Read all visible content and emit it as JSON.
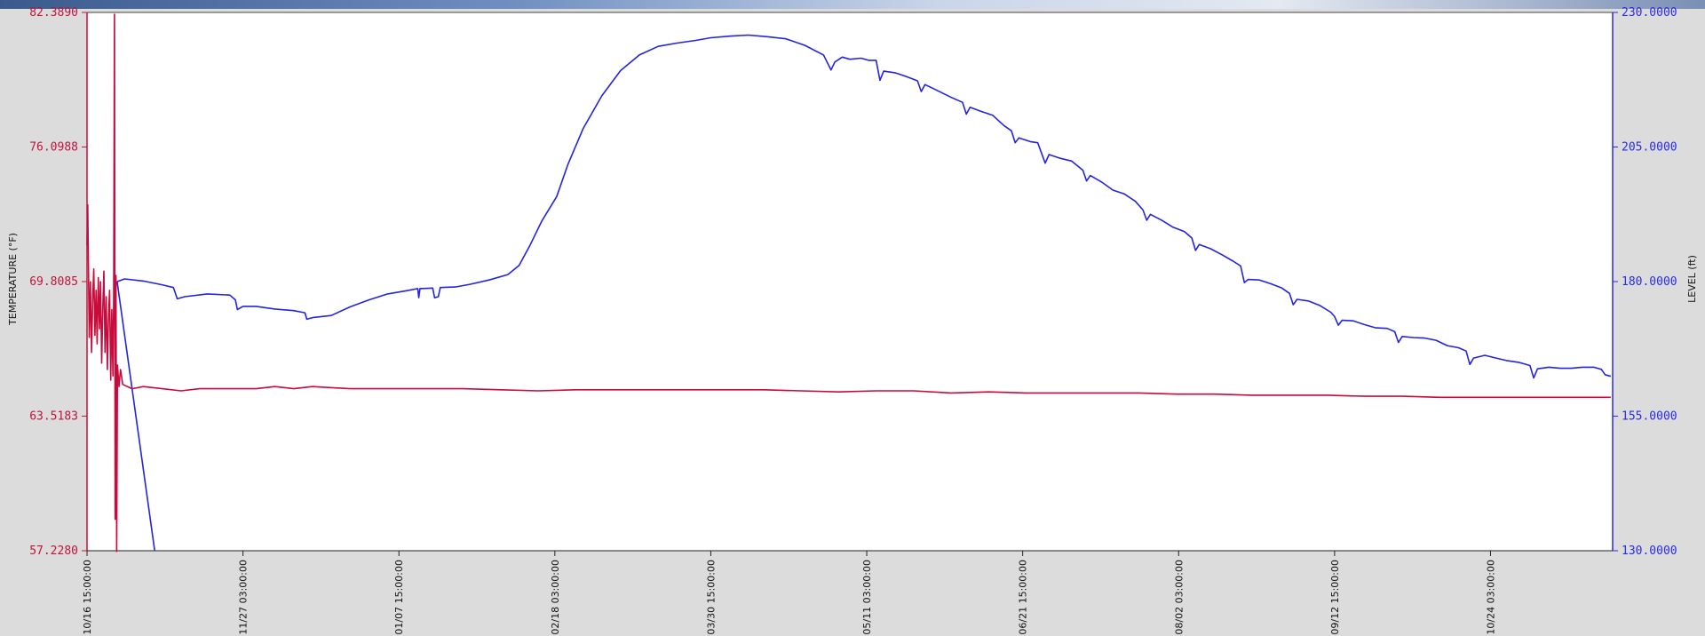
{
  "chart_data": {
    "type": "line",
    "title": "",
    "xlabel": "",
    "ylabel_left": "TEMPERATURE (°F)",
    "ylabel_right": "LEVEL (ft)",
    "x_tick_labels": [
      "10/16 15:00:00",
      "11/27 03:00:00",
      "01/07 15:00:00",
      "02/18 03:00:00",
      "03/30 15:00:00",
      "05/11 03:00:00",
      "06/21 15:00:00",
      "08/02 03:00:00",
      "09/12 15:00:00",
      "10/24 03:00:00"
    ],
    "x_range_days": [
      0,
      406
    ],
    "x_tick_days": [
      0,
      41.5,
      83,
      124.5,
      166,
      207.5,
      249,
      290.5,
      332,
      373.5
    ],
    "y_left_ticks": [
      "82.3890",
      "76.0988",
      "69.8085",
      "63.5183",
      "57.2280"
    ],
    "y_left_range": [
      57.228,
      82.389
    ],
    "y_right_ticks": [
      "230.0000",
      "205.0000",
      "180.0000",
      "155.0000",
      "130.0000"
    ],
    "y_right_range": [
      130,
      230
    ],
    "grid": false,
    "series": [
      {
        "axis": "right",
        "color": "#2424e0",
        "points": [
          [
            8,
            180
          ],
          [
            10,
            180.5
          ],
          [
            15,
            180.1
          ],
          [
            20,
            179.4
          ],
          [
            23,
            178.9
          ],
          [
            24,
            176.8
          ],
          [
            26,
            177.2
          ],
          [
            32,
            177.7
          ],
          [
            38,
            177.5
          ],
          [
            39.5,
            176.6
          ],
          [
            40,
            174.8
          ],
          [
            41.5,
            175.4
          ],
          [
            45,
            175.4
          ],
          [
            50,
            174.9
          ],
          [
            55,
            174.6
          ],
          [
            58,
            174.2
          ],
          [
            58.5,
            173.0
          ],
          [
            60,
            173.3
          ],
          [
            65,
            173.7
          ],
          [
            70,
            175.3
          ],
          [
            75,
            176.6
          ],
          [
            80,
            177.7
          ],
          [
            85,
            178.3
          ],
          [
            88,
            178.7
          ],
          [
            88.3,
            177.0
          ],
          [
            88.6,
            178.7
          ],
          [
            92,
            178.8
          ],
          [
            92.5,
            177.0
          ],
          [
            93.5,
            177.2
          ],
          [
            94,
            178.9
          ],
          [
            98,
            179.0
          ],
          [
            102,
            179.5
          ],
          [
            107,
            180.3
          ],
          [
            112,
            181.3
          ],
          [
            115,
            183.0
          ],
          [
            118,
            186.9
          ],
          [
            121,
            191.2
          ],
          [
            125,
            195.8
          ],
          [
            128,
            201.8
          ],
          [
            132,
            208.4
          ],
          [
            137,
            214.5
          ],
          [
            142,
            219.2
          ],
          [
            147,
            222.1
          ],
          [
            152,
            223.7
          ],
          [
            157,
            224.3
          ],
          [
            162,
            224.8
          ],
          [
            166,
            225.3
          ],
          [
            171,
            225.6
          ],
          [
            176,
            225.8
          ],
          [
            181,
            225.5
          ],
          [
            186,
            225.1
          ],
          [
            191,
            223.9
          ],
          [
            196,
            222.1
          ],
          [
            198,
            219.3
          ],
          [
            199,
            220.8
          ],
          [
            201,
            221.7
          ],
          [
            203,
            221.3
          ],
          [
            206,
            221.5
          ],
          [
            208,
            221.1
          ],
          [
            210,
            221.1
          ],
          [
            211,
            217.4
          ],
          [
            212,
            219.1
          ],
          [
            215,
            218.8
          ],
          [
            218,
            218.1
          ],
          [
            221,
            217.3
          ],
          [
            222,
            215.3
          ],
          [
            223,
            216.6
          ],
          [
            226,
            215.6
          ],
          [
            230,
            214.2
          ],
          [
            233,
            213.3
          ],
          [
            234,
            211.1
          ],
          [
            235,
            212.4
          ],
          [
            238,
            211.6
          ],
          [
            241,
            210.9
          ],
          [
            244,
            209.0
          ],
          [
            246,
            208.0
          ],
          [
            247,
            205.8
          ],
          [
            248,
            206.7
          ],
          [
            251,
            206.0
          ],
          [
            253,
            205.8
          ],
          [
            255,
            202.0
          ],
          [
            256,
            203.6
          ],
          [
            259,
            202.9
          ],
          [
            262,
            202.4
          ],
          [
            265,
            200.7
          ],
          [
            266,
            198.7
          ],
          [
            267,
            199.7
          ],
          [
            270,
            198.5
          ],
          [
            273,
            197.0
          ],
          [
            276,
            196.3
          ],
          [
            279,
            194.9
          ],
          [
            281,
            193.3
          ],
          [
            282,
            191.4
          ],
          [
            283,
            192.5
          ],
          [
            286,
            191.4
          ],
          [
            289,
            190.1
          ],
          [
            292,
            189.3
          ],
          [
            294,
            188.1
          ],
          [
            295,
            185.8
          ],
          [
            296,
            186.9
          ],
          [
            299,
            186.1
          ],
          [
            302,
            185.0
          ],
          [
            305,
            183.8
          ],
          [
            307,
            182.9
          ],
          [
            308,
            179.8
          ],
          [
            309,
            180.4
          ],
          [
            312,
            180.3
          ],
          [
            315,
            179.6
          ],
          [
            318,
            178.8
          ],
          [
            320,
            177.8
          ],
          [
            321,
            175.7
          ],
          [
            322,
            176.7
          ],
          [
            325,
            176.4
          ],
          [
            328,
            175.6
          ],
          [
            331,
            174.3
          ],
          [
            332,
            173.5
          ],
          [
            333,
            171.9
          ],
          [
            334,
            172.8
          ],
          [
            337,
            172.7
          ],
          [
            340,
            172.0
          ],
          [
            343,
            171.4
          ],
          [
            346,
            171.3
          ],
          [
            348,
            170.7
          ],
          [
            349,
            168.7
          ],
          [
            350,
            169.8
          ],
          [
            353,
            169.6
          ],
          [
            356,
            169.5
          ],
          [
            359,
            169.1
          ],
          [
            362,
            168.1
          ],
          [
            365,
            167.7
          ],
          [
            367,
            167.1
          ],
          [
            368,
            164.6
          ],
          [
            369,
            165.8
          ],
          [
            372,
            166.3
          ],
          [
            375,
            165.8
          ],
          [
            378,
            165.3
          ],
          [
            381,
            165.0
          ],
          [
            384,
            164.4
          ],
          [
            385,
            162.1
          ],
          [
            386,
            163.8
          ],
          [
            389,
            164.1
          ],
          [
            392,
            163.9
          ],
          [
            395,
            163.9
          ],
          [
            398,
            164.1
          ],
          [
            401,
            164.1
          ],
          [
            403,
            163.7
          ],
          [
            404,
            162.7
          ],
          [
            405.5,
            162.4
          ]
        ]
      },
      {
        "axis": "right",
        "color": "#2424e0",
        "points": [
          [
            8,
            180
          ],
          [
            18,
            130
          ]
        ]
      },
      {
        "axis": "left",
        "color": "#c80a3c",
        "points": [
          [
            0,
            71.5
          ],
          [
            0.2,
            73.4
          ],
          [
            0.4,
            70.2
          ],
          [
            0.6,
            67.2
          ],
          [
            0.9,
            69.8
          ],
          [
            1.2,
            66.5
          ],
          [
            1.5,
            68.8
          ],
          [
            1.8,
            70.4
          ],
          [
            2.1,
            67.3
          ],
          [
            2.4,
            69.4
          ],
          [
            2.7,
            66.9
          ],
          [
            3.0,
            70.0
          ],
          [
            3.3,
            67.6
          ],
          [
            3.6,
            69.8
          ],
          [
            3.9,
            66.0
          ],
          [
            4.2,
            68.6
          ],
          [
            4.5,
            70.3
          ],
          [
            4.8,
            66.5
          ],
          [
            5.1,
            69.1
          ],
          [
            5.4,
            65.7
          ],
          [
            5.7,
            68.0
          ],
          [
            6.0,
            69.4
          ],
          [
            6.3,
            65.2
          ],
          [
            6.6,
            68.5
          ],
          [
            6.9,
            65.4
          ],
          [
            7.1,
            69.0
          ],
          [
            7.3,
            82.3
          ],
          [
            7.5,
            58.7
          ],
          [
            7.7,
            70.1
          ],
          [
            7.9,
            57.2
          ],
          [
            8.1,
            65.9
          ],
          [
            8.5,
            64.9
          ],
          [
            8.9,
            65.7
          ],
          [
            9.5,
            65.0
          ],
          [
            12,
            64.8
          ],
          [
            15,
            64.9
          ],
          [
            20,
            64.8
          ],
          [
            25,
            64.7
          ],
          [
            30,
            64.8
          ],
          [
            35,
            64.8
          ],
          [
            40,
            64.8
          ],
          [
            45,
            64.8
          ],
          [
            50,
            64.9
          ],
          [
            55,
            64.8
          ],
          [
            60,
            64.9
          ],
          [
            70,
            64.8
          ],
          [
            80,
            64.8
          ],
          [
            90,
            64.8
          ],
          [
            100,
            64.8
          ],
          [
            110,
            64.75
          ],
          [
            120,
            64.7
          ],
          [
            130,
            64.75
          ],
          [
            140,
            64.75
          ],
          [
            150,
            64.75
          ],
          [
            160,
            64.75
          ],
          [
            170,
            64.75
          ],
          [
            180,
            64.75
          ],
          [
            190,
            64.7
          ],
          [
            200,
            64.65
          ],
          [
            210,
            64.7
          ],
          [
            220,
            64.7
          ],
          [
            230,
            64.6
          ],
          [
            240,
            64.65
          ],
          [
            250,
            64.6
          ],
          [
            260,
            64.6
          ],
          [
            270,
            64.6
          ],
          [
            280,
            64.6
          ],
          [
            290,
            64.55
          ],
          [
            300,
            64.55
          ],
          [
            310,
            64.5
          ],
          [
            320,
            64.5
          ],
          [
            330,
            64.5
          ],
          [
            340,
            64.45
          ],
          [
            350,
            64.45
          ],
          [
            360,
            64.4
          ],
          [
            370,
            64.4
          ],
          [
            380,
            64.4
          ],
          [
            390,
            64.4
          ],
          [
            400,
            64.4
          ],
          [
            405.5,
            64.4
          ]
        ]
      }
    ]
  }
}
